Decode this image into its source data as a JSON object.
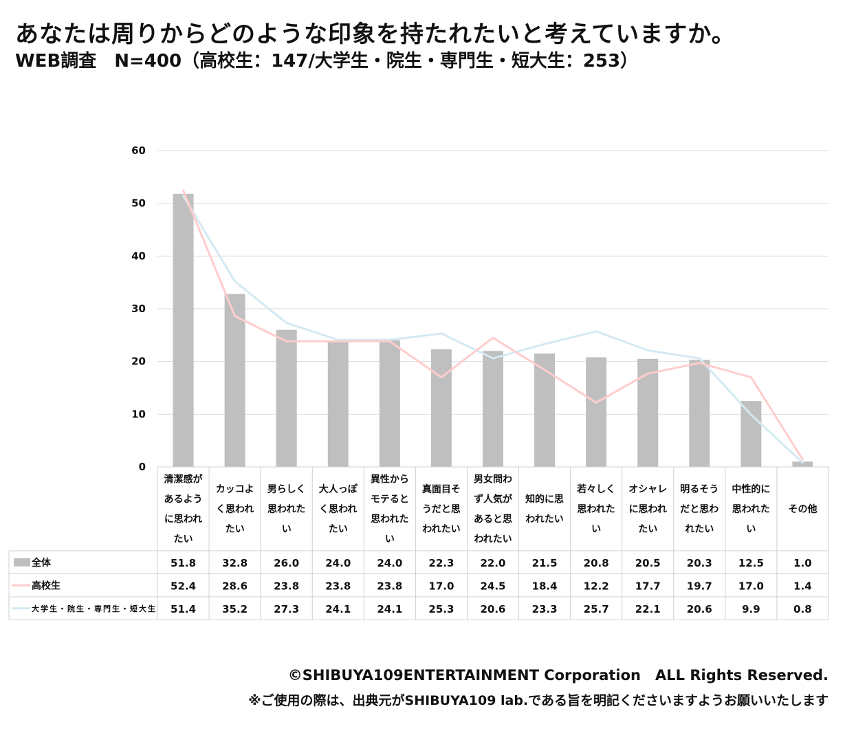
{
  "header": {
    "title": "あなたは周りからどのような印象を持たれたいと考えていますか。",
    "subtitle": "WEB調査　N=400（高校生：147/大学生・院生・専門生・短大生：253）"
  },
  "colors": {
    "bar": "#bfbfbf",
    "line_highschool": "#ffcccc",
    "line_university": "#d4e9f2",
    "grid": "#d9d9d9",
    "table_border": "#d0d0d0"
  },
  "chart_data": {
    "type": "bar",
    "ylim": [
      0,
      60
    ],
    "yticks": [
      "0",
      "10",
      "20",
      "30",
      "40",
      "50",
      "60"
    ],
    "grid": true,
    "categories": [
      [
        "清潔感が",
        "あるよう",
        "に思われ",
        "たい"
      ],
      [
        "カッコよ",
        "く思われ",
        "たい"
      ],
      [
        "男らしく",
        "思われた",
        "い"
      ],
      [
        "大人っぽ",
        "く思われ",
        "たい"
      ],
      [
        "異性から",
        "モテると",
        "思われた",
        "い"
      ],
      [
        "真面目そ",
        "うだと思",
        "われたい"
      ],
      [
        "男女問わ",
        "ず人気が",
        "あると思",
        "われたい"
      ],
      [
        "知的に思",
        "われたい"
      ],
      [
        "若々しく",
        "思われた",
        "い"
      ],
      [
        "オシャレ",
        "に思われ",
        "たい"
      ],
      [
        "明るそう",
        "だと思わ",
        "れたい"
      ],
      [
        "中性的に",
        "思われた",
        "い"
      ],
      [
        "その他"
      ]
    ],
    "series": [
      {
        "name": "全体",
        "kind": "bar",
        "values": [
          51.8,
          32.8,
          26.0,
          24.0,
          24.0,
          22.3,
          22.0,
          21.5,
          20.8,
          20.5,
          20.3,
          12.5,
          1.0
        ],
        "labels": [
          "51.8",
          "32.8",
          "26.0",
          "24.0",
          "24.0",
          "22.3",
          "22.0",
          "21.5",
          "20.8",
          "20.5",
          "20.3",
          "12.5",
          "1.0"
        ]
      },
      {
        "name": "高校生",
        "kind": "line",
        "values": [
          52.4,
          28.6,
          23.8,
          23.8,
          23.8,
          17.0,
          24.5,
          18.4,
          12.2,
          17.7,
          19.7,
          17.0,
          1.4
        ],
        "labels": [
          "52.4",
          "28.6",
          "23.8",
          "23.8",
          "23.8",
          "17.0",
          "24.5",
          "18.4",
          "12.2",
          "17.7",
          "19.7",
          "17.0",
          "1.4"
        ]
      },
      {
        "name": "大学生・院生・専門生・短大生",
        "kind": "line",
        "values": [
          51.4,
          35.2,
          27.3,
          24.1,
          24.1,
          25.3,
          20.6,
          23.3,
          25.7,
          22.1,
          20.6,
          9.9,
          0.8
        ],
        "labels": [
          "51.4",
          "35.2",
          "27.3",
          "24.1",
          "24.1",
          "25.3",
          "20.6",
          "23.3",
          "25.7",
          "22.1",
          "20.6",
          "9.9",
          "0.8"
        ]
      }
    ]
  },
  "footer": {
    "copyright": "©SHIBUYA109ENTERTAINMENT Corporation　ALL Rights Reserved.",
    "note": "※ご使用の際は、出典元がSHIBUYA109 lab.である旨を明記くださいますようお願いいたします"
  }
}
